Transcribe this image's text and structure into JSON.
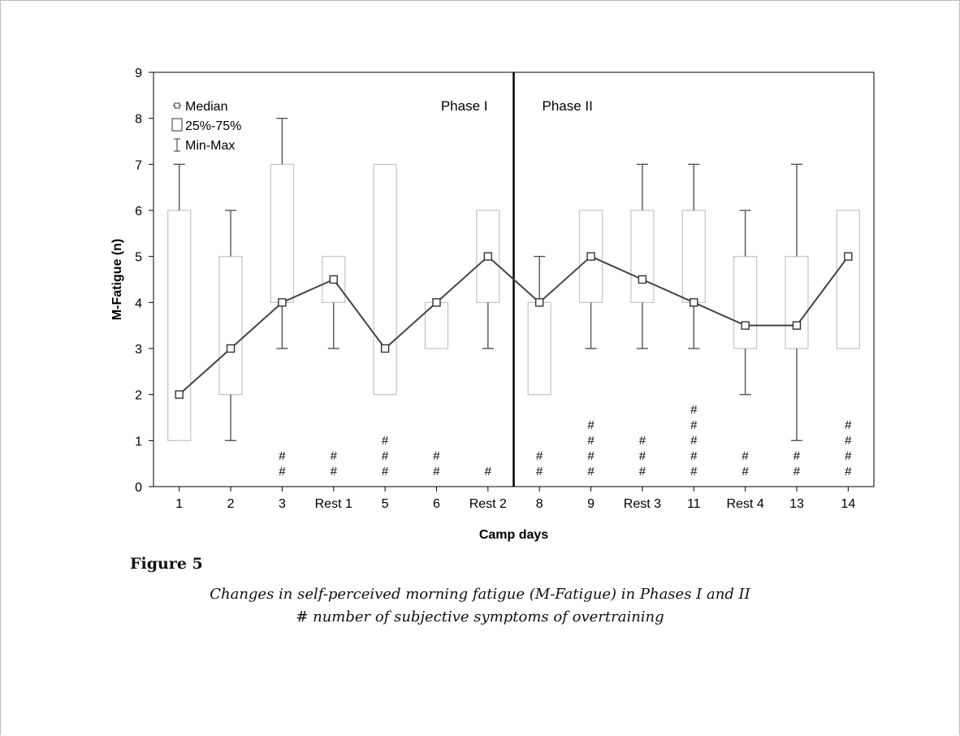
{
  "figure": {
    "label": "Figure 5",
    "caption_line1": "Changes in self-perceived morning fatigue (M-Fatigue) in Phases I and II",
    "caption_line2": "# number of subjective symptoms of overtraining"
  },
  "chart_data": {
    "type": "box",
    "xlabel": "Camp days",
    "ylabel": "M-Fatigue (n)",
    "ylim": [
      0,
      9
    ],
    "yticks": [
      0,
      1,
      2,
      3,
      4,
      5,
      6,
      7,
      8,
      9
    ],
    "categories": [
      "1",
      "2",
      "3",
      "Rest 1",
      "5",
      "6",
      "Rest 2",
      "8",
      "9",
      "Rest 3",
      "11",
      "Rest 4",
      "13",
      "14"
    ],
    "median": [
      2,
      3,
      4,
      4.5,
      3,
      4,
      5,
      4,
      5,
      4.5,
      4,
      3.5,
      3.5,
      5
    ],
    "q1": [
      1,
      2,
      4,
      4,
      2,
      3,
      4,
      2,
      4,
      4,
      4,
      3,
      3,
      3
    ],
    "q3": [
      6,
      5,
      7,
      5,
      7,
      4,
      6,
      4,
      6,
      6,
      6,
      5,
      5,
      6
    ],
    "min": [
      1,
      1,
      3,
      3,
      2,
      3,
      3,
      2,
      3,
      3,
      3,
      2,
      1,
      3
    ],
    "max": [
      7,
      6,
      8,
      5,
      7,
      4,
      6,
      5,
      6,
      7,
      7,
      6,
      7,
      6
    ],
    "symptoms": [
      0,
      0,
      2,
      2,
      3,
      2,
      1,
      2,
      4,
      3,
      5,
      2,
      2,
      4
    ],
    "symptom_marker": "#",
    "phase_divider_after": "Rest 2",
    "annotations": [
      "Phase I",
      "Phase II"
    ],
    "legend": {
      "position": "top-left",
      "entries": [
        "Median",
        "25%-75%",
        "Min-Max"
      ]
    },
    "colors": {
      "line": "#444444",
      "box": "#c8c8c8",
      "whisker": "#555555",
      "divider": "#000000"
    }
  }
}
